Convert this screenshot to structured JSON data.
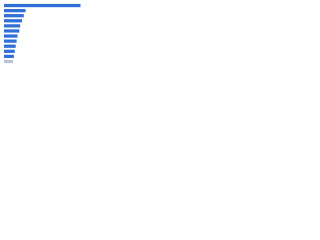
{
  "chart_data": {
    "type": "bar",
    "orientation": "horizontal",
    "categories": [
      null,
      null,
      null,
      null,
      null,
      null,
      null,
      null,
      null,
      null,
      null,
      null
    ],
    "values": [
      85,
      24,
      22,
      20,
      18,
      17,
      15,
      14,
      13,
      12,
      11,
      10
    ],
    "colors": [
      "#2f6fd6",
      "#2f6fd6",
      "#2f6fd6",
      "#2f6fd6",
      "#2f6fd6",
      "#2f6fd6",
      "#2f6fd6",
      "#2f6fd6",
      "#2f6fd6",
      "#2f6fd6",
      "#2f6fd6",
      "#b9c3d3"
    ],
    "xlim": [
      0,
      100
    ]
  }
}
